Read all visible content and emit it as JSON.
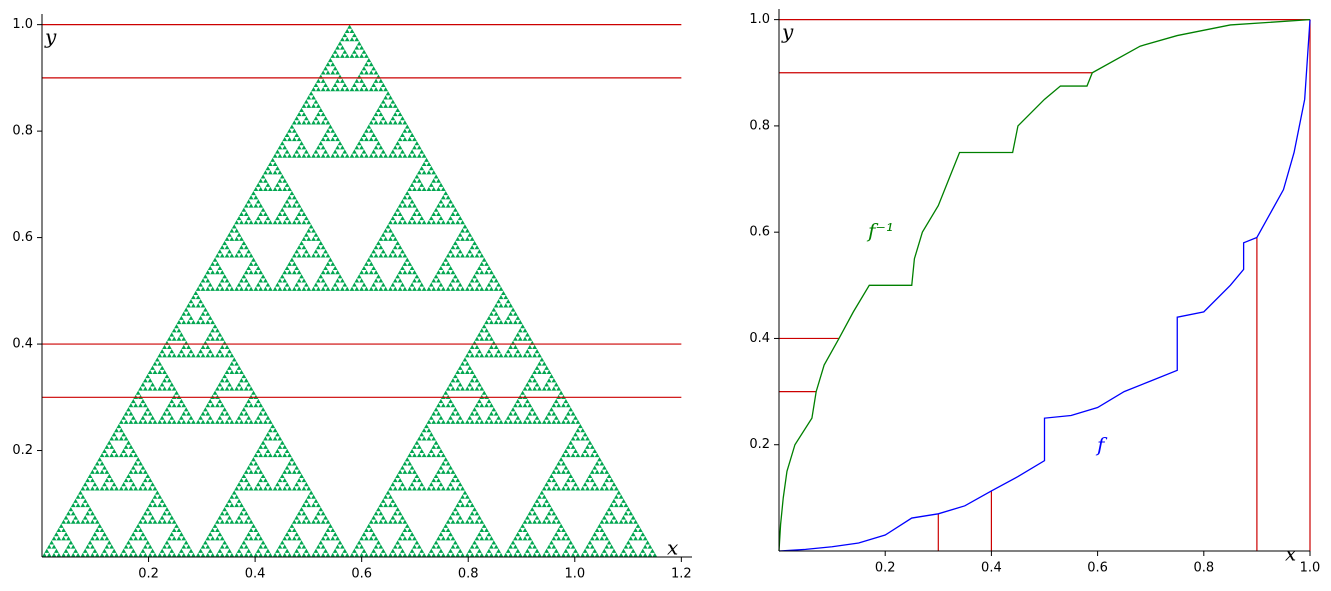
{
  "chart_data": [
    {
      "type": "fractal",
      "x_label": "x",
      "y_label": "y",
      "color": "#00a650",
      "vertices": [
        [
          0,
          0
        ],
        [
          1.1547,
          0
        ],
        [
          0.57735,
          1
        ]
      ],
      "xlim": [
        0,
        1.22
      ],
      "ylim": [
        0,
        1.02
      ],
      "xticks": [
        0.2,
        0.4,
        0.6,
        0.8,
        {
          "value": 1,
          "label": "1.0"
        },
        1.2
      ],
      "yticks": [
        0.2,
        0.4,
        0.6,
        0.8,
        {
          "value": 1,
          "label": "1.0"
        }
      ],
      "line_color": "#cc0000",
      "hlines": [
        {
          "y": 1,
          "xmin": 0,
          "xmax": 1.2
        },
        {
          "y": 0.9,
          "xmin": 0,
          "xmax": 1.2
        },
        {
          "y": 0.4,
          "xmin": 0,
          "xmax": 1.2
        },
        {
          "y": 0.3,
          "xmin": 0,
          "xmax": 1.2
        }
      ]
    },
    {
      "type": "line",
      "x_label": "x",
      "y_label": "y",
      "xlim": [
        0,
        1
      ],
      "ylim": [
        0,
        1.02
      ],
      "xticks": [
        0.2,
        0.4,
        0.6,
        0.8,
        {
          "value": 1,
          "label": "1.0"
        }
      ],
      "yticks": [
        0.2,
        0.4,
        0.6,
        0.8,
        {
          "value": 1,
          "label": "1.0"
        }
      ],
      "line_color": "#cc0000",
      "hlines": [
        {
          "y": 1,
          "xmin": 0,
          "xmax": 1
        },
        {
          "y": 0.9,
          "xmin": 0,
          "xmax": 0.59
        },
        {
          "y": 0.4,
          "xmin": 0,
          "xmax": 0.113
        },
        {
          "y": 0.3,
          "xmin": 0,
          "xmax": 0.07
        }
      ],
      "vlines": [
        {
          "x": 0.3,
          "ymin": 0,
          "ymax": 0.07
        },
        {
          "x": 0.4,
          "ymin": 0,
          "ymax": 0.113
        },
        {
          "x": 0.9,
          "ymin": 0,
          "ymax": 0.59
        },
        {
          "x": 1,
          "ymin": 0,
          "ymax": 1
        }
      ],
      "series": [
        {
          "name": "f",
          "color": "#0000ff",
          "x": [
            0,
            0.05,
            0.1,
            0.15,
            0.2,
            0.25,
            0.3,
            0.35,
            0.4,
            0.45,
            0.5,
            0.5,
            0.55,
            0.6,
            0.65,
            0.7,
            0.75,
            0.75,
            0.8,
            0.85,
            0.875,
            0.875,
            0.9,
            0.95,
            0.97,
            0.99,
            1
          ],
          "values": [
            0,
            0.003,
            0.008,
            0.015,
            0.03,
            0.062,
            0.07,
            0.085,
            0.113,
            0.14,
            0.17,
            0.25,
            0.255,
            0.27,
            0.3,
            0.32,
            0.34,
            0.44,
            0.45,
            0.5,
            0.53,
            0.58,
            0.59,
            0.68,
            0.75,
            0.85,
            1
          ]
        },
        {
          "name": "f⁻¹",
          "color": "#008000",
          "x": [
            0,
            0.003,
            0.008,
            0.015,
            0.03,
            0.062,
            0.07,
            0.085,
            0.113,
            0.14,
            0.17,
            0.25,
            0.255,
            0.27,
            0.3,
            0.32,
            0.34,
            0.44,
            0.45,
            0.5,
            0.53,
            0.58,
            0.59,
            0.68,
            0.75,
            0.85,
            1
          ],
          "values": [
            0,
            0.05,
            0.1,
            0.15,
            0.2,
            0.25,
            0.3,
            0.35,
            0.4,
            0.45,
            0.5,
            0.5,
            0.55,
            0.6,
            0.65,
            0.7,
            0.75,
            0.75,
            0.8,
            0.85,
            0.875,
            0.875,
            0.9,
            0.95,
            0.97,
            0.99,
            1
          ]
        }
      ]
    }
  ]
}
